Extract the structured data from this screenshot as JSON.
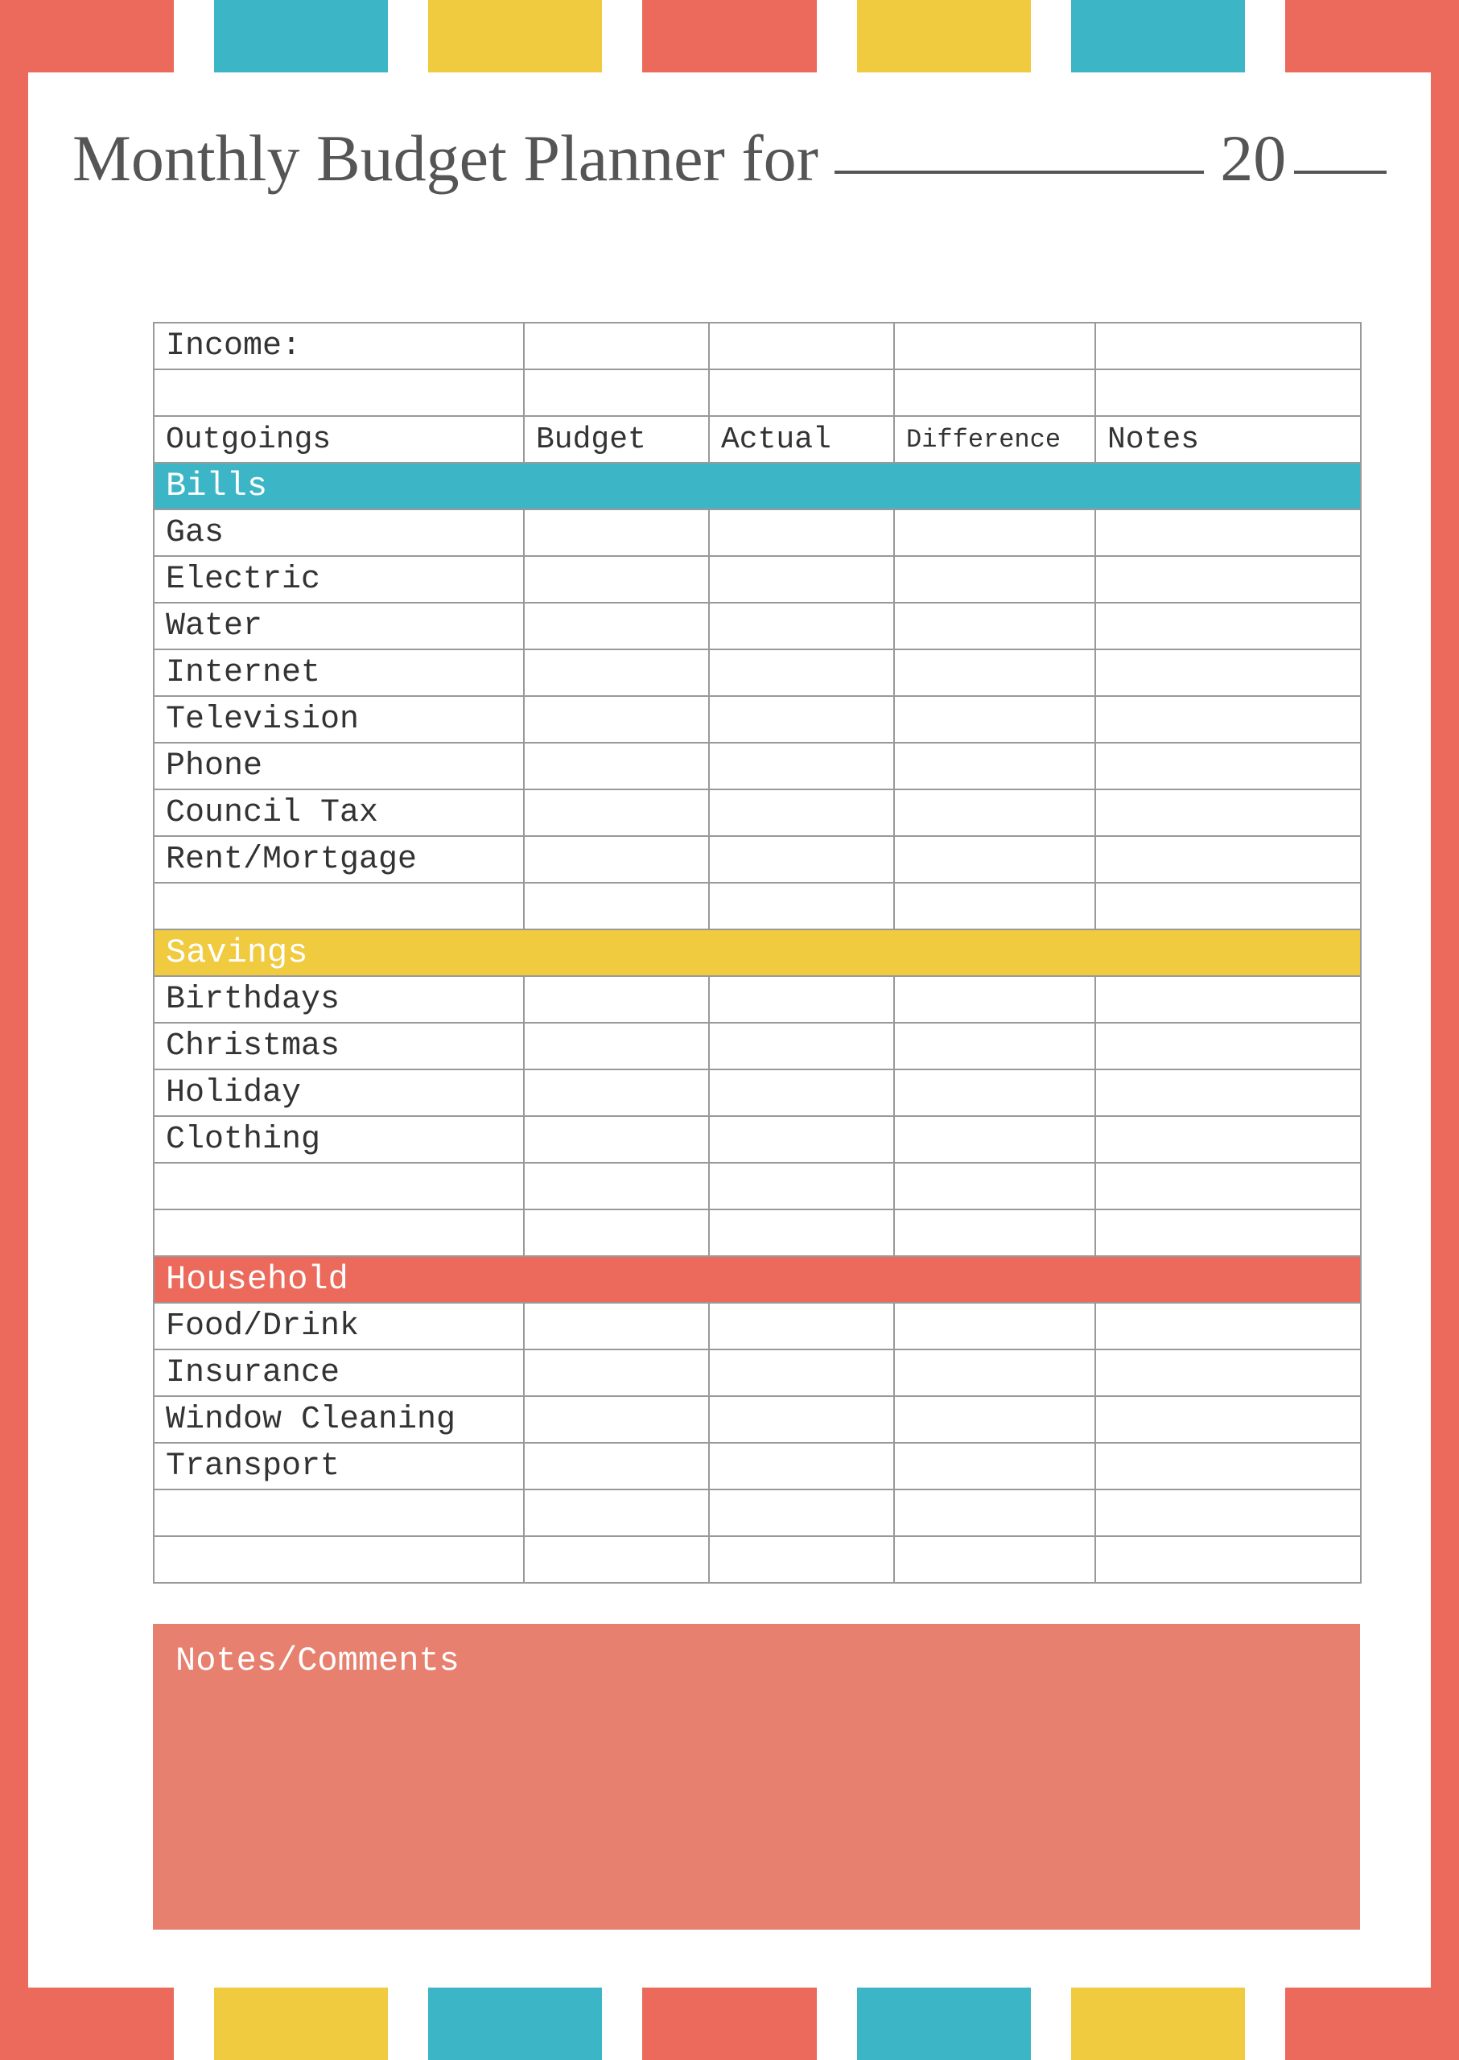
{
  "colors": {
    "coral": "#ec6a5b",
    "teal": "#3cb6c6",
    "yellow": "#f0ca3f",
    "white": "#ffffff",
    "border_gray": "#999999",
    "text_gray": "#333333",
    "title_gray": "#555555"
  },
  "topbar_colors": [
    "#ec6a5b",
    "#3cb6c6",
    "#f0ca3f",
    "#ec6a5b",
    "#f0ca3f",
    "#3cb6c6",
    "#ec6a5b"
  ],
  "bottombar_colors": [
    "#ec6a5b",
    "#f0ca3f",
    "#3cb6c6",
    "#ec6a5b",
    "#3cb6c6",
    "#f0ca3f",
    "#ec6a5b"
  ],
  "side_color": "#ec6a5b",
  "title": {
    "prefix": "Monthly Budget Planner for",
    "year_prefix": "20"
  },
  "income_label": "Income:",
  "column_headers": {
    "outgoings": "Outgoings",
    "budget": "Budget",
    "actual": "Actual",
    "difference": "Difference",
    "notes": "Notes"
  },
  "sections": [
    {
      "label": "Bills",
      "bg": "#3cb6c6",
      "rows": [
        "Gas",
        "Electric",
        "Water",
        "Internet",
        "Television",
        "Phone",
        "Council Tax",
        "Rent/Mortgage"
      ],
      "trailing_blank_rows": 1
    },
    {
      "label": "Savings",
      "bg": "#f0ca3f",
      "rows": [
        "Birthdays",
        "Christmas",
        "Holiday",
        "Clothing"
      ],
      "trailing_blank_rows": 2
    },
    {
      "label": "Household",
      "bg": "#ec6a5b",
      "rows": [
        "Food/Drink",
        "Insurance",
        "Window Cleaning",
        "Transport"
      ],
      "trailing_blank_rows": 2
    }
  ],
  "notes_box": {
    "label": "Notes/Comments",
    "bg": "#e7806f"
  }
}
